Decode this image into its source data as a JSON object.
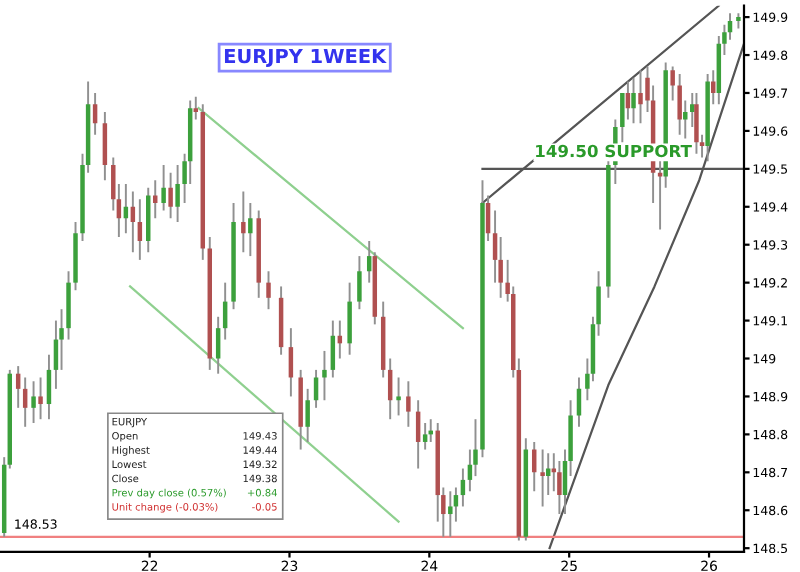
{
  "chart_data": {
    "type": "candlestick",
    "title": "EURJPY 1WEEK",
    "xlim": [
      20.93,
      26.25
    ],
    "ylim": [
      148.49,
      149.93
    ],
    "xticks": [
      22,
      23,
      24,
      25,
      26
    ],
    "yticks": [
      148.5,
      148.6,
      148.7,
      148.8,
      148.9,
      149,
      149.1,
      149.2,
      149.3,
      149.4,
      149.5,
      149.6,
      149.7,
      149.8,
      149.9
    ],
    "grid": false,
    "x": [
      20.96,
      21.0,
      21.06,
      21.11,
      21.17,
      21.22,
      21.28,
      21.33,
      21.37,
      21.42,
      21.47,
      21.52,
      21.56,
      21.61,
      21.68,
      21.74,
      21.78,
      21.83,
      21.88,
      21.93,
      21.99,
      22.04,
      22.1,
      22.15,
      22.2,
      22.25,
      22.29,
      22.33,
      22.38,
      22.43,
      22.49,
      22.54,
      22.6,
      22.67,
      22.72,
      22.78,
      22.85,
      22.94,
      23.01,
      23.08,
      23.13,
      23.19,
      23.25,
      23.31,
      23.36,
      23.43,
      23.5,
      23.57,
      23.61,
      23.67,
      23.72,
      23.78,
      23.85,
      23.92,
      23.97,
      24.01,
      24.06,
      24.1,
      24.15,
      24.19,
      24.24,
      24.29,
      24.33,
      24.38,
      24.42,
      24.47,
      24.51,
      24.56,
      24.6,
      24.64,
      24.69,
      24.75,
      24.81,
      24.85,
      24.89,
      24.93,
      24.97,
      25.01,
      25.07,
      25.13,
      25.17,
      25.21,
      25.28,
      25.33,
      25.38,
      25.42,
      25.46,
      25.51,
      25.56,
      25.6,
      25.65,
      25.69,
      25.74,
      25.79,
      25.83,
      25.88,
      25.91,
      25.95,
      25.99,
      26.03,
      26.07,
      26.11,
      26.15,
      26.21
    ],
    "ohlc": [
      [
        148.54,
        148.74,
        148.53,
        148.72
      ],
      [
        148.72,
        148.97,
        148.71,
        148.96
      ],
      [
        148.96,
        148.98,
        148.87,
        148.92
      ],
      [
        148.92,
        148.95,
        148.82,
        148.87
      ],
      [
        148.87,
        148.94,
        148.83,
        148.9
      ],
      [
        148.9,
        148.95,
        148.84,
        148.88
      ],
      [
        148.88,
        149.01,
        148.84,
        148.97
      ],
      [
        148.97,
        149.1,
        148.92,
        149.05
      ],
      [
        149.05,
        149.13,
        148.97,
        149.08
      ],
      [
        149.08,
        149.23,
        149.05,
        149.2
      ],
      [
        149.2,
        149.36,
        149.18,
        149.33
      ],
      [
        149.33,
        149.54,
        149.31,
        149.51
      ],
      [
        149.51,
        149.73,
        149.49,
        149.67
      ],
      [
        149.67,
        149.7,
        149.59,
        149.62
      ],
      [
        149.62,
        149.65,
        149.47,
        149.51
      ],
      [
        149.51,
        149.53,
        149.39,
        149.42
      ],
      [
        149.42,
        149.46,
        149.32,
        149.37
      ],
      [
        149.37,
        149.46,
        149.33,
        149.4
      ],
      [
        149.4,
        149.44,
        149.28,
        149.36
      ],
      [
        149.36,
        149.42,
        149.26,
        149.31
      ],
      [
        149.31,
        149.45,
        149.28,
        149.43
      ],
      [
        149.43,
        149.47,
        149.37,
        149.41
      ],
      [
        149.41,
        149.51,
        149.39,
        149.45
      ],
      [
        149.45,
        149.49,
        149.37,
        149.4
      ],
      [
        149.4,
        149.51,
        149.36,
        149.46
      ],
      [
        149.46,
        149.54,
        149.41,
        149.52
      ],
      [
        149.52,
        149.68,
        149.46,
        149.66
      ],
      [
        149.66,
        149.69,
        149.63,
        149.65
      ],
      [
        149.65,
        149.67,
        149.26,
        149.29
      ],
      [
        149.29,
        149.32,
        148.97,
        149.0
      ],
      [
        149.0,
        149.11,
        148.96,
        149.08
      ],
      [
        149.08,
        149.2,
        149.05,
        149.15
      ],
      [
        149.15,
        149.41,
        149.13,
        149.36
      ],
      [
        149.36,
        149.44,
        149.28,
        149.33
      ],
      [
        149.33,
        149.41,
        149.27,
        149.37
      ],
      [
        149.37,
        149.39,
        149.16,
        149.2
      ],
      [
        149.2,
        149.23,
        149.13,
        149.16
      ],
      [
        149.16,
        149.19,
        149.01,
        149.03
      ],
      [
        149.03,
        149.08,
        148.9,
        148.95
      ],
      [
        148.95,
        148.97,
        148.76,
        148.82
      ],
      [
        148.82,
        148.92,
        148.78,
        148.89
      ],
      [
        148.89,
        148.97,
        148.87,
        148.95
      ],
      [
        148.95,
        149.02,
        148.89,
        148.97
      ],
      [
        148.97,
        149.1,
        148.95,
        149.06
      ],
      [
        149.06,
        149.1,
        149.0,
        149.04
      ],
      [
        149.04,
        149.2,
        149.01,
        149.15
      ],
      [
        149.15,
        149.27,
        149.13,
        149.23
      ],
      [
        149.23,
        149.31,
        149.2,
        149.27
      ],
      [
        149.27,
        149.28,
        149.09,
        149.11
      ],
      [
        149.11,
        149.15,
        148.95,
        148.97
      ],
      [
        148.97,
        149.0,
        148.84,
        148.89
      ],
      [
        148.89,
        148.95,
        148.85,
        148.9
      ],
      [
        148.9,
        148.94,
        148.82,
        148.86
      ],
      [
        148.86,
        148.89,
        148.71,
        148.78
      ],
      [
        148.78,
        148.83,
        148.76,
        148.8
      ],
      [
        148.8,
        148.84,
        148.78,
        148.81
      ],
      [
        148.81,
        148.83,
        148.57,
        148.64
      ],
      [
        148.64,
        148.66,
        148.53,
        148.59
      ],
      [
        148.59,
        148.65,
        148.53,
        148.61
      ],
      [
        148.61,
        148.66,
        148.57,
        148.64
      ],
      [
        148.64,
        148.71,
        148.61,
        148.68
      ],
      [
        148.68,
        148.76,
        148.65,
        148.72
      ],
      [
        148.72,
        148.84,
        148.69,
        148.76
      ],
      [
        148.76,
        149.47,
        148.74,
        149.41
      ],
      [
        149.41,
        149.43,
        149.31,
        149.33
      ],
      [
        149.33,
        149.39,
        149.2,
        149.26
      ],
      [
        149.26,
        149.32,
        149.16,
        149.2
      ],
      [
        149.2,
        149.26,
        149.15,
        149.17
      ],
      [
        149.17,
        149.19,
        148.95,
        148.97
      ],
      [
        148.97,
        149.0,
        148.52,
        148.53
      ],
      [
        148.53,
        148.79,
        148.52,
        148.76
      ],
      [
        148.76,
        148.78,
        148.65,
        148.7
      ],
      [
        148.7,
        148.76,
        148.61,
        148.69
      ],
      [
        148.69,
        148.75,
        148.64,
        148.71
      ],
      [
        148.71,
        148.75,
        148.65,
        148.7
      ],
      [
        148.7,
        148.73,
        148.59,
        148.64
      ],
      [
        148.64,
        148.76,
        148.59,
        148.73
      ],
      [
        148.73,
        148.89,
        148.69,
        148.85
      ],
      [
        148.85,
        148.95,
        148.82,
        148.92
      ],
      [
        148.92,
        149.0,
        148.89,
        148.96
      ],
      [
        148.96,
        149.11,
        148.94,
        149.09
      ],
      [
        149.09,
        149.23,
        149.06,
        149.19
      ],
      [
        149.19,
        149.53,
        149.16,
        149.51
      ],
      [
        149.51,
        149.63,
        149.46,
        149.61
      ],
      [
        149.61,
        149.7,
        149.57,
        149.7
      ],
      [
        149.7,
        149.73,
        149.63,
        149.66
      ],
      [
        149.66,
        149.74,
        149.62,
        149.7
      ],
      [
        149.7,
        149.76,
        149.62,
        149.67
      ],
      [
        149.74,
        149.77,
        149.65,
        149.68
      ],
      [
        149.68,
        149.72,
        149.41,
        149.49
      ],
      [
        149.49,
        149.53,
        149.34,
        149.48
      ],
      [
        149.48,
        149.78,
        149.45,
        149.76
      ],
      [
        149.76,
        149.77,
        149.68,
        149.72
      ],
      [
        149.72,
        149.75,
        149.59,
        149.63
      ],
      [
        149.63,
        149.68,
        149.58,
        149.65
      ],
      [
        149.65,
        149.7,
        149.61,
        149.67
      ],
      [
        149.67,
        149.7,
        149.54,
        149.57
      ],
      [
        149.57,
        149.59,
        149.53,
        149.56
      ],
      [
        149.56,
        149.75,
        149.52,
        149.73
      ],
      [
        149.73,
        149.76,
        149.67,
        149.7
      ],
      [
        149.7,
        149.85,
        149.67,
        149.83
      ],
      [
        149.83,
        149.88,
        149.8,
        149.86
      ],
      [
        149.86,
        149.91,
        149.84,
        149.89
      ],
      [
        149.89,
        149.91,
        149.87,
        149.9
      ]
    ],
    "series": [
      {
        "type": "line",
        "color": "#8fd08f",
        "x": [
          22.35,
          24.24
        ],
        "values": [
          149.66,
          149.08
        ]
      },
      {
        "type": "line",
        "color": "#8fd08f",
        "x": [
          21.86,
          23.78
        ],
        "values": [
          149.19,
          148.57
        ]
      },
      {
        "type": "line",
        "color": "#555555",
        "x": [
          24.38,
          26.07
        ],
        "values": [
          149.41,
          149.93
        ]
      },
      {
        "type": "line",
        "color": "#555555",
        "x": [
          24.86,
          25.28,
          25.61,
          25.93,
          26.25
        ],
        "values": [
          148.5,
          148.93,
          149.19,
          149.47,
          149.83
        ]
      },
      {
        "type": "line",
        "color": "#555555",
        "x": [
          24.38,
          26.25
        ],
        "values": [
          149.5,
          149.5
        ]
      }
    ],
    "ref_lines": [
      {
        "axis": "y",
        "value": 148.53,
        "label": "148.53",
        "color": "#f08080"
      }
    ],
    "annotations": [
      {
        "text": "149.50 SUPPORT",
        "x": 24.75,
        "y": 149.5
      },
      "EURJPY",
      "Open",
      "149.43",
      "Highest",
      "149.44",
      "Lowest",
      "149.32",
      "Close",
      "149.38",
      "Prev day close (0.57%)",
      "+0.84",
      "Unit change (-0.03%)",
      "-0.05"
    ]
  }
}
